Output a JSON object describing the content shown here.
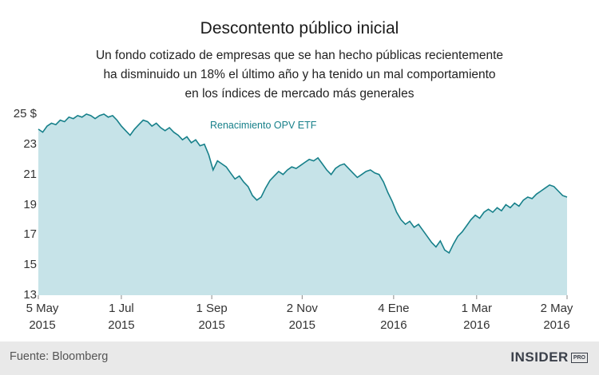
{
  "header": {
    "title": "Descontento público inicial",
    "subtitle_lines": [
      "Un fondo cotizado de empresas que se han hecho públicas recientemente",
      "ha disminuido un 18% el último año y ha tenido un mal comportamiento",
      "en los índices de mercado más generales"
    ]
  },
  "chart_data": {
    "type": "area",
    "series_label": "Renacimiento OPV ETF",
    "ylim": [
      13,
      25
    ],
    "yticks": [
      {
        "value": 25,
        "label": "25 $"
      },
      {
        "value": 23,
        "label": "23"
      },
      {
        "value": 21,
        "label": "21"
      },
      {
        "value": 19,
        "label": "19"
      },
      {
        "value": 17,
        "label": "17"
      },
      {
        "value": 15,
        "label": "15"
      },
      {
        "value": 13,
        "label": "13"
      }
    ],
    "xticks": [
      {
        "pos": 0.0,
        "label": "5 May",
        "year": "2015"
      },
      {
        "pos": 0.157,
        "label": "1 Jul",
        "year": "2015"
      },
      {
        "pos": 0.328,
        "label": "1 Sep",
        "year": "2015"
      },
      {
        "pos": 0.499,
        "label": "2 Nov",
        "year": "2015"
      },
      {
        "pos": 0.672,
        "label": "4 Ene",
        "year": "2016"
      },
      {
        "pos": 0.829,
        "label": "1 Mar",
        "year": "2016"
      },
      {
        "pos": 1.0,
        "label": "2 May",
        "year": "2016"
      }
    ],
    "values": [
      24.0,
      23.8,
      24.2,
      24.4,
      24.3,
      24.6,
      24.5,
      24.8,
      24.7,
      24.9,
      24.8,
      25.0,
      24.9,
      24.7,
      24.9,
      25.0,
      24.8,
      24.9,
      24.6,
      24.2,
      23.9,
      23.6,
      24.0,
      24.3,
      24.6,
      24.5,
      24.2,
      24.4,
      24.1,
      23.9,
      24.1,
      23.8,
      23.6,
      23.3,
      23.5,
      23.1,
      23.3,
      22.9,
      23.0,
      22.3,
      21.3,
      21.9,
      21.7,
      21.5,
      21.1,
      20.7,
      20.9,
      20.5,
      20.2,
      19.6,
      19.3,
      19.5,
      20.1,
      20.6,
      20.9,
      21.2,
      21.0,
      21.3,
      21.5,
      21.4,
      21.6,
      21.8,
      22.0,
      21.9,
      22.1,
      21.7,
      21.3,
      21.0,
      21.4,
      21.6,
      21.7,
      21.4,
      21.1,
      20.8,
      21.0,
      21.2,
      21.3,
      21.1,
      21.0,
      20.5,
      19.8,
      19.2,
      18.5,
      18.0,
      17.7,
      17.9,
      17.5,
      17.7,
      17.3,
      16.9,
      16.5,
      16.2,
      16.6,
      16.0,
      15.8,
      16.4,
      16.9,
      17.2,
      17.6,
      18.0,
      18.3,
      18.1,
      18.5,
      18.7,
      18.5,
      18.8,
      18.6,
      19.0,
      18.8,
      19.1,
      18.9,
      19.3,
      19.5,
      19.4,
      19.7,
      19.9,
      20.1,
      20.3,
      20.2,
      19.9,
      19.6,
      19.5
    ],
    "colors": {
      "line": "#17808a",
      "fill": "#c6e3e8",
      "tick": "#888888"
    }
  },
  "footer": {
    "source": "Fuente: Bloomberg",
    "brand": "INSIDER",
    "brand_badge": "PRO"
  }
}
